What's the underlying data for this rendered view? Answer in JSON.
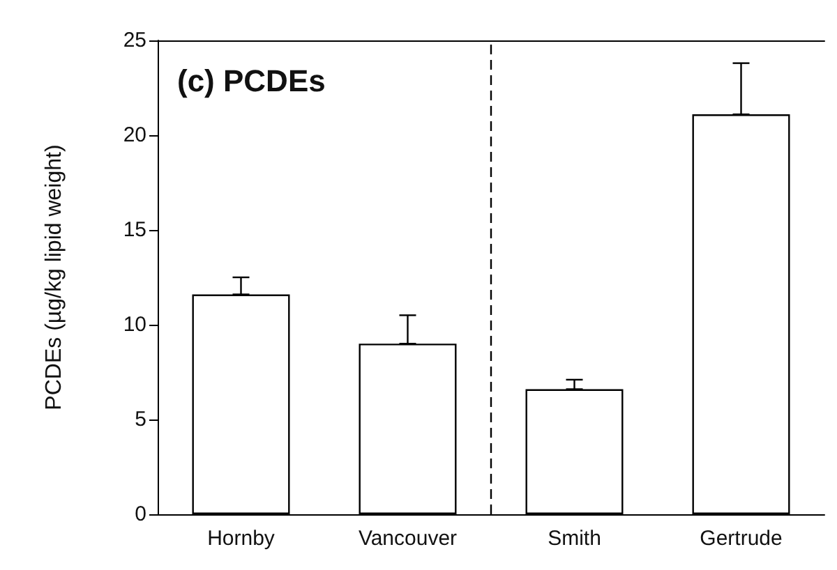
{
  "chart_data": {
    "type": "bar",
    "title": "(c) PCDEs",
    "ylabel": "PCDEs (µg/kg lipid weight)",
    "categories": [
      "Hornby",
      "Vancouver",
      "Smith",
      "Gertrude"
    ],
    "values": [
      11.6,
      9.0,
      6.6,
      21.1
    ],
    "errors": [
      [
        11.6,
        12.5
      ],
      [
        9.0,
        10.5
      ],
      [
        6.6,
        7.1
      ],
      [
        21.1,
        23.8
      ]
    ],
    "color": "#ffffff",
    "ylim": [
      0,
      25
    ],
    "yticks": [
      0,
      5,
      10,
      15,
      20,
      25
    ],
    "grid": false
  }
}
